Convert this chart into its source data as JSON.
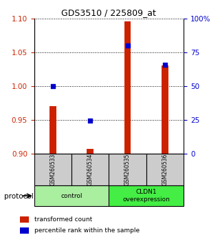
{
  "title": "GDS3510 / 225809_at",
  "samples": [
    "GSM260533",
    "GSM260534",
    "GSM260535",
    "GSM260536"
  ],
  "red_values": [
    0.97,
    0.907,
    1.095,
    1.03
  ],
  "blue_values": [
    0.5,
    0.245,
    0.8,
    0.655
  ],
  "ylim_left": [
    0.9,
    1.1
  ],
  "ylim_right": [
    0.0,
    1.0
  ],
  "yticks_left": [
    0.9,
    0.95,
    1.0,
    1.05,
    1.1
  ],
  "yticks_right": [
    0.0,
    0.25,
    0.5,
    0.75,
    1.0
  ],
  "ytick_labels_right": [
    "0",
    "25",
    "50",
    "75",
    "100%"
  ],
  "bar_color": "#cc2200",
  "dot_color": "#0000cc",
  "bar_width": 0.18,
  "dot_size": 22,
  "sample_box_color": "#cccccc",
  "control_green": "#aaeea0",
  "overexp_green": "#44ee44",
  "legend_items": [
    {
      "color": "#cc2200",
      "label": "transformed count"
    },
    {
      "color": "#0000cc",
      "label": "percentile rank within the sample"
    }
  ],
  "protocol_label": "protocol"
}
